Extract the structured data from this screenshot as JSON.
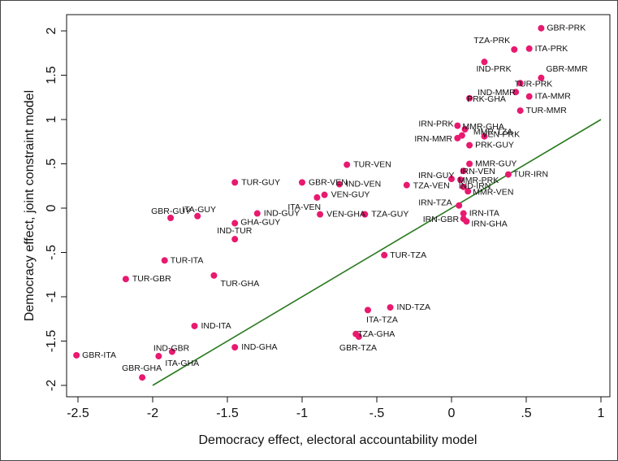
{
  "chart_data": {
    "type": "scatter",
    "title": "",
    "xlabel": "Democracy effect, electoral accountability model",
    "ylabel": "Democracy effect, joint constraint model",
    "xlim": [
      -2.6,
      1.0
    ],
    "ylim": [
      -2.1,
      2.1
    ],
    "xticks": [
      -2.5,
      -2,
      -1.5,
      -1,
      -0.5,
      0,
      0.5,
      1
    ],
    "xtick_labels": [
      "-2.5",
      "-2",
      "-1.5",
      "-1",
      "-.5",
      "0",
      ".5",
      "1"
    ],
    "yticks": [
      -2,
      -1.5,
      -1,
      -0.5,
      0,
      0.5,
      1,
      1.5,
      2
    ],
    "ytick_labels": [
      "-2",
      "-1.5",
      "-1",
      "-.5",
      "0",
      ".5",
      "1",
      "1.5",
      "2"
    ],
    "grid": false,
    "legend": "none",
    "point_color": "#e8196f",
    "line_color": "#2a7a1f",
    "reference_line": {
      "x": [
        -2,
        1
      ],
      "y": [
        -2,
        1
      ]
    },
    "points": [
      {
        "label": "GBR-PRK",
        "x": 0.6,
        "y": 2.03
      },
      {
        "label": "ITA-PRK",
        "x": 0.52,
        "y": 1.8
      },
      {
        "label": "TZA-PRK",
        "x": 0.42,
        "y": 1.79
      },
      {
        "label": "IND-PRK",
        "x": 0.22,
        "y": 1.65
      },
      {
        "label": "GBR-MMR",
        "x": 0.6,
        "y": 1.47
      },
      {
        "label": "TUR-PRK",
        "x": 0.46,
        "y": 1.41
      },
      {
        "label": "IND-MMR",
        "x": 0.43,
        "y": 1.31
      },
      {
        "label": "ITA-MMR",
        "x": 0.52,
        "y": 1.26
      },
      {
        "label": "PRK-GHA",
        "x": 0.12,
        "y": 1.24
      },
      {
        "label": "TUR-MMR",
        "x": 0.46,
        "y": 1.1
      },
      {
        "label": "IRN-PRK",
        "x": 0.04,
        "y": 0.93
      },
      {
        "label": "MMR-GHA",
        "x": 0.09,
        "y": 0.89
      },
      {
        "label": "MMR-TZA",
        "x": 0.07,
        "y": 0.82
      },
      {
        "label": "VEN-PRK",
        "x": 0.22,
        "y": 0.81
      },
      {
        "label": "IRN-MMR",
        "x": 0.04,
        "y": 0.79
      },
      {
        "label": "PRK-GUY",
        "x": 0.12,
        "y": 0.71
      },
      {
        "label": "MMR-GUY",
        "x": 0.12,
        "y": 0.5
      },
      {
        "label": "IRN-VEN",
        "x": 0.08,
        "y": 0.42
      },
      {
        "label": "TUR-IRN",
        "x": 0.38,
        "y": 0.38
      },
      {
        "label": "IRN-GUY",
        "x": 0.0,
        "y": 0.33
      },
      {
        "label": "MMR-PRK",
        "x": 0.06,
        "y": 0.32
      },
      {
        "label": "TZA-VEN",
        "x": -0.3,
        "y": 0.26
      },
      {
        "label": "IND-IRN",
        "x": 0.08,
        "y": 0.24
      },
      {
        "label": "MMR-VEN",
        "x": 0.11,
        "y": 0.19
      },
      {
        "label": "IRN-TZA",
        "x": 0.05,
        "y": 0.03
      },
      {
        "label": "IRN-ITA",
        "x": 0.08,
        "y": -0.06
      },
      {
        "label": "IRN-GBR",
        "x": 0.08,
        "y": -0.12
      },
      {
        "label": "IRN-GHA",
        "x": 0.1,
        "y": -0.15
      },
      {
        "label": "TUR-VEN",
        "x": -0.7,
        "y": 0.49
      },
      {
        "label": "TUR-GUY",
        "x": -1.45,
        "y": 0.29
      },
      {
        "label": "GBR-VEN",
        "x": -1.0,
        "y": 0.29
      },
      {
        "label": "IND-VEN",
        "x": -0.75,
        "y": 0.27
      },
      {
        "label": "VEN-GUY",
        "x": -0.85,
        "y": 0.15
      },
      {
        "label": "ITA-VEN",
        "x": -0.9,
        "y": 0.12
      },
      {
        "label": "IND-GUY",
        "x": -1.3,
        "y": -0.06
      },
      {
        "label": "VEN-GHA",
        "x": -0.88,
        "y": -0.07
      },
      {
        "label": "TZA-GUY",
        "x": -0.58,
        "y": -0.07
      },
      {
        "label": "GBR-GUY",
        "x": -1.88,
        "y": -0.11
      },
      {
        "label": "ITA-GUY",
        "x": -1.7,
        "y": -0.09
      },
      {
        "label": "GHA-GUY",
        "x": -1.45,
        "y": -0.17
      },
      {
        "label": "IND-TUR",
        "x": -1.45,
        "y": -0.35
      },
      {
        "label": "TUR-TZA",
        "x": -0.45,
        "y": -0.53
      },
      {
        "label": "TUR-ITA",
        "x": -1.92,
        "y": -0.59
      },
      {
        "label": "TUR-GBR",
        "x": -2.18,
        "y": -0.8
      },
      {
        "label": "TUR-GHA",
        "x": -1.59,
        "y": -0.76
      },
      {
        "label": "IND-TZA",
        "x": -0.41,
        "y": -1.12
      },
      {
        "label": "ITA-TZA",
        "x": -0.56,
        "y": -1.15
      },
      {
        "label": "TZA-GHA",
        "x": -0.64,
        "y": -1.42
      },
      {
        "label": "GBR-TZA",
        "x": -0.62,
        "y": -1.45
      },
      {
        "label": "IND-ITA",
        "x": -1.72,
        "y": -1.33
      },
      {
        "label": "IND-GHA",
        "x": -1.45,
        "y": -1.57
      },
      {
        "label": "IND-GBR",
        "x": -1.87,
        "y": -1.62
      },
      {
        "label": "ITA-GHA",
        "x": -1.96,
        "y": -1.67
      },
      {
        "label": "GBR-ITA",
        "x": -2.51,
        "y": -1.66
      },
      {
        "label": "GBR-GHA",
        "x": -2.07,
        "y": -1.91
      }
    ]
  }
}
